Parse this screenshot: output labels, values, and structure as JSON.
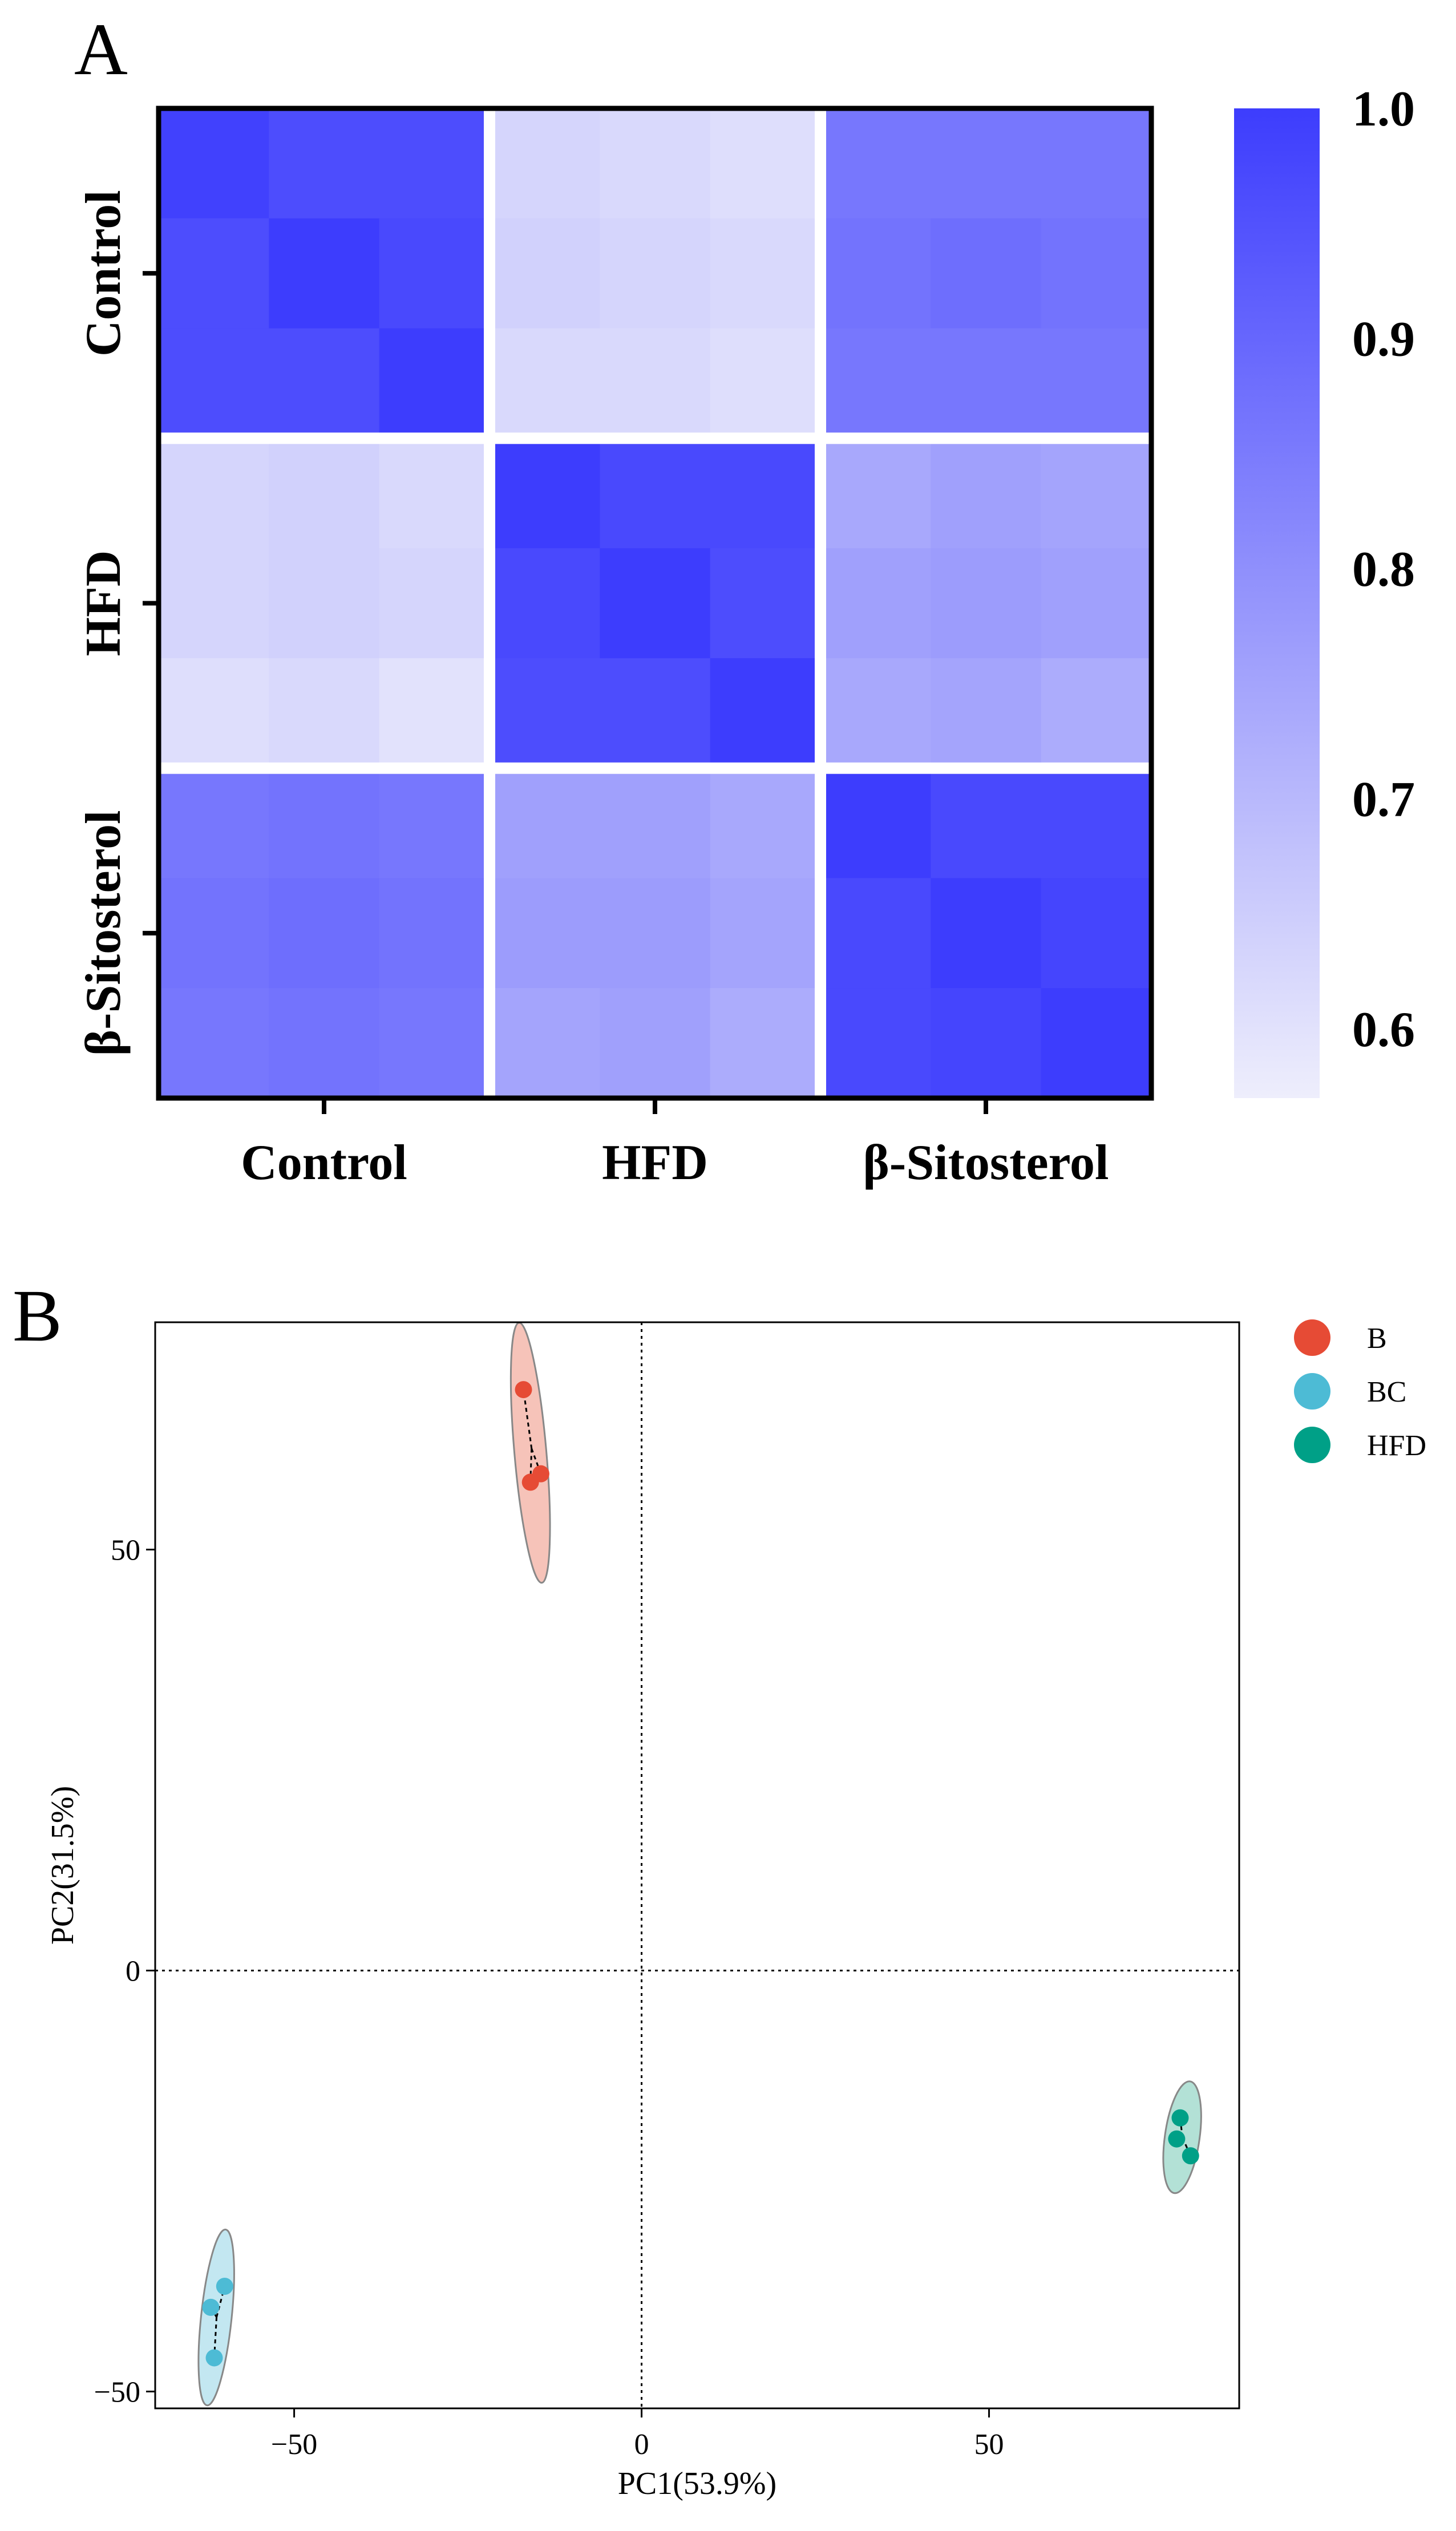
{
  "chart_data": [
    {
      "type": "heatmap",
      "panel_label": "A",
      "row_groups": [
        "Control",
        "HFD",
        "β-Sitosterol"
      ],
      "col_groups": [
        "Control",
        "HFD",
        "β-Sitosterol"
      ],
      "values": [
        [
          0.99,
          0.96,
          0.96,
          0.63,
          0.62,
          0.61,
          0.86,
          0.86,
          0.86
        ],
        [
          0.96,
          1.0,
          0.97,
          0.64,
          0.63,
          0.62,
          0.87,
          0.88,
          0.87
        ],
        [
          0.96,
          0.96,
          1.0,
          0.62,
          0.62,
          0.61,
          0.86,
          0.86,
          0.86
        ],
        [
          0.63,
          0.64,
          0.62,
          1.0,
          0.97,
          0.97,
          0.74,
          0.76,
          0.75
        ],
        [
          0.63,
          0.64,
          0.63,
          0.97,
          1.0,
          0.96,
          0.76,
          0.77,
          0.76
        ],
        [
          0.61,
          0.62,
          0.6,
          0.96,
          0.96,
          1.0,
          0.74,
          0.75,
          0.73
        ],
        [
          0.86,
          0.87,
          0.86,
          0.76,
          0.76,
          0.74,
          1.0,
          0.97,
          0.97
        ],
        [
          0.87,
          0.88,
          0.87,
          0.77,
          0.77,
          0.75,
          0.97,
          1.0,
          0.98
        ],
        [
          0.86,
          0.87,
          0.86,
          0.75,
          0.76,
          0.73,
          0.97,
          0.98,
          1.0
        ]
      ],
      "colorbar": {
        "min": 0.57,
        "max": 1.0,
        "ticks": [
          1.0,
          0.9,
          0.8,
          0.7,
          0.6
        ],
        "tick_labels": [
          "1.0",
          "0.9",
          "0.8",
          "0.7",
          "0.6"
        ]
      },
      "colors": {
        "low": "#eeeefc",
        "high": "#3d3dfd",
        "separator": "#ffffff",
        "frame": "#000000"
      }
    },
    {
      "type": "scatter",
      "panel_label": "B",
      "xlabel": "PC1(53.9%)",
      "ylabel": "PC2(31.5%)",
      "xlim": [
        -70,
        86
      ],
      "ylim": [
        -52,
        77
      ],
      "xticks": [
        -50,
        0,
        50
      ],
      "yticks": [
        -50,
        0,
        50
      ],
      "xtick_labels": [
        "−50",
        "0",
        "50"
      ],
      "ytick_labels": [
        "−50",
        "0",
        "50"
      ],
      "reference_lines": {
        "x": 0,
        "y": 0
      },
      "legend_position": "right",
      "series": [
        {
          "name": "B",
          "color": "#e64b35",
          "fill": "#f4b8ad",
          "points": [
            [
              -17,
              69
            ],
            [
              -16,
              58
            ],
            [
              -14.5,
              59
            ]
          ],
          "ellipse": {
            "cx": -16,
            "cy": 61.5,
            "rx": 2.3,
            "ry": 15.5,
            "angle_deg": -5
          }
        },
        {
          "name": "BC",
          "color": "#4dbbd5",
          "fill": "#b8e3ee",
          "points": [
            [
              -62,
              -40
            ],
            [
              -61.5,
              -46
            ],
            [
              -60,
              -37.5
            ]
          ],
          "ellipse": {
            "cx": -61.2,
            "cy": -41.2,
            "rx": 2.2,
            "ry": 10.5,
            "angle_deg": 6
          }
        },
        {
          "name": "HFD",
          "color": "#00a087",
          "fill": "#a6dccf",
          "points": [
            [
              77,
              -20
            ],
            [
              77.5,
              -17.5
            ],
            [
              79,
              -22
            ]
          ],
          "ellipse": {
            "cx": 77.8,
            "cy": -19.8,
            "rx": 2.5,
            "ry": 6.7,
            "angle_deg": 8
          }
        }
      ]
    }
  ]
}
